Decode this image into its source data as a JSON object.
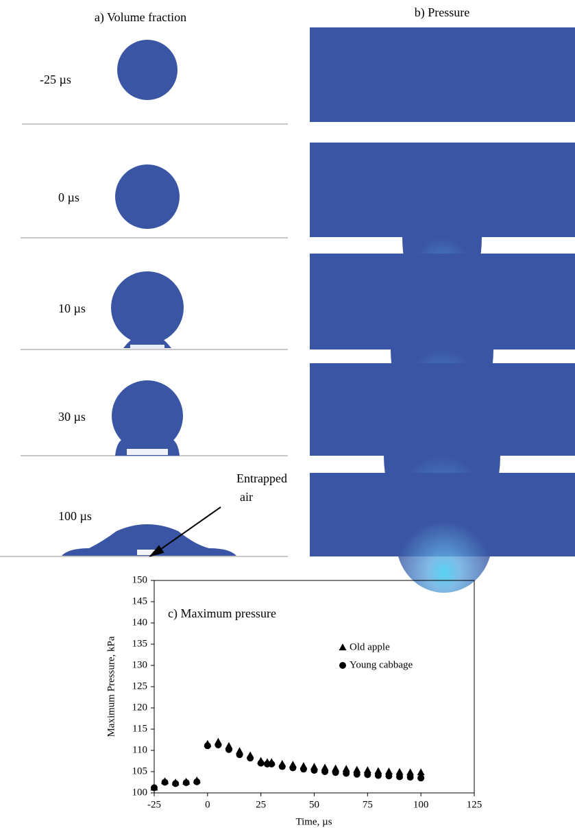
{
  "figure": {
    "panel_a_title": "a) Volume fraction",
    "panel_b_title": "b) Pressure",
    "times": [
      "-25 µs",
      "0 µs",
      "10 µs",
      "30 µs",
      "100 µs"
    ],
    "annotation": [
      "Entrapped",
      "air"
    ]
  },
  "chart_data": {
    "type": "scatter",
    "title": "c) Maximum pressure",
    "x_label": "Time, µs",
    "y_label": "Maximum Pressure, kPa",
    "xlim": [
      -25,
      125
    ],
    "xticks": [
      -25,
      0,
      25,
      50,
      75,
      100,
      125
    ],
    "ylim": [
      100,
      150
    ],
    "yticks": [
      100,
      105,
      110,
      115,
      120,
      125,
      130,
      135,
      140,
      145,
      150
    ],
    "grid": false,
    "legend": "upper right",
    "series": [
      {
        "name": "Old apple",
        "marker": "triangle",
        "color": "#000000",
        "x": [
          -25,
          -20,
          -15,
          -10,
          -5,
          0,
          5,
          10,
          15,
          20,
          25,
          28,
          30,
          35,
          40,
          45,
          50,
          55,
          60,
          65,
          70,
          75,
          80,
          85,
          90,
          95,
          100
        ],
        "values": [
          101.2,
          102.7,
          102.4,
          102.6,
          102.9,
          111.5,
          112.0,
          111.0,
          109.8,
          108.8,
          107.5,
          107.2,
          107.2,
          106.8,
          106.6,
          106.3,
          106.1,
          105.9,
          105.7,
          105.6,
          105.4,
          105.3,
          105.1,
          105.0,
          104.9,
          104.8,
          104.8
        ]
      },
      {
        "name": "Young cabbage",
        "marker": "circle",
        "color": "#000000",
        "x": [
          -25,
          -20,
          -15,
          -10,
          -5,
          0,
          5,
          10,
          15,
          20,
          25,
          28,
          30,
          35,
          40,
          45,
          50,
          55,
          60,
          65,
          70,
          75,
          80,
          85,
          90,
          95,
          100
        ],
        "values": [
          101.2,
          102.5,
          102.2,
          102.4,
          102.6,
          111.1,
          111.3,
          110.2,
          109.0,
          108.2,
          107.0,
          106.8,
          106.8,
          106.2,
          105.9,
          105.6,
          105.3,
          105.0,
          104.8,
          104.6,
          104.4,
          104.3,
          104.1,
          104.0,
          103.8,
          103.7,
          103.5
        ]
      }
    ]
  }
}
